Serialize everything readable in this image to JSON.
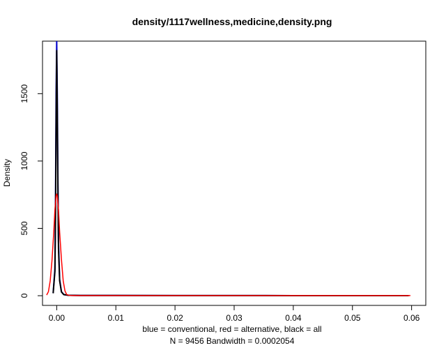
{
  "chart_data": {
    "type": "line",
    "title": "density/1117wellness,medicine,density.png",
    "xlabel": "blue = conventional, red = alternative, black = all",
    "ylabel": "Density",
    "subtitle": "N = 9456   Bandwidth = 0.0002054",
    "xlim": [
      -0.0024,
      0.0624
    ],
    "ylim": [
      -72,
      1890
    ],
    "x_ticks": [
      0.0,
      0.01,
      0.02,
      0.03,
      0.04,
      0.05,
      0.06
    ],
    "x_tick_labels": [
      "0.00",
      "0.01",
      "0.02",
      "0.03",
      "0.04",
      "0.05",
      "0.06"
    ],
    "y_ticks": [
      0,
      500,
      1000,
      1500
    ],
    "y_tick_labels": [
      "0",
      "500",
      "1000",
      "1500"
    ],
    "grid": false,
    "series": [
      {
        "color": "#0000cc",
        "line_width": 2,
        "x": [
          -0.0006,
          -0.0003,
          -0.0002,
          -0.0001,
          0.0,
          0.0001,
          0.0002,
          0.0003,
          0.0005,
          0.0008,
          0.0012,
          0.002,
          0.004,
          0.01,
          0.02,
          0.03,
          0.04,
          0.05,
          0.0595
        ],
        "y": [
          20,
          200,
          700,
          1500,
          1890,
          1500,
          900,
          400,
          120,
          30,
          8,
          3,
          2,
          1.5,
          1.2,
          1.0,
          0.8,
          0.6,
          0.5
        ]
      },
      {
        "color": "#000000",
        "line_width": 2,
        "x": [
          -0.0006,
          -0.0003,
          -0.0002,
          -0.0001,
          0.0,
          0.0001,
          0.0002,
          0.0003,
          0.0005,
          0.0008,
          0.0012,
          0.002,
          0.004,
          0.01,
          0.02,
          0.03,
          0.04,
          0.05,
          0.0595
        ],
        "y": [
          18,
          180,
          600,
          1300,
          1820,
          1350,
          800,
          350,
          110,
          28,
          8,
          3,
          2,
          1.5,
          1.2,
          1.0,
          0.8,
          0.6,
          0.5
        ]
      },
      {
        "color": "#ff0000",
        "line_width": 1.5,
        "x": [
          -0.0017,
          -0.0014,
          -0.0011,
          -0.0008,
          -0.0005,
          -0.0003,
          -0.0001,
          0.0,
          0.0001,
          0.0003,
          0.0005,
          0.0008,
          0.0011,
          0.0014,
          0.0017,
          0.0022,
          0.003,
          0.01,
          0.02,
          0.03,
          0.04,
          0.05,
          0.0598
        ],
        "y": [
          5,
          30,
          110,
          260,
          470,
          640,
          740,
          755,
          740,
          640,
          470,
          270,
          110,
          35,
          8,
          2,
          1,
          1,
          1,
          1,
          1,
          1,
          1
        ]
      }
    ]
  }
}
